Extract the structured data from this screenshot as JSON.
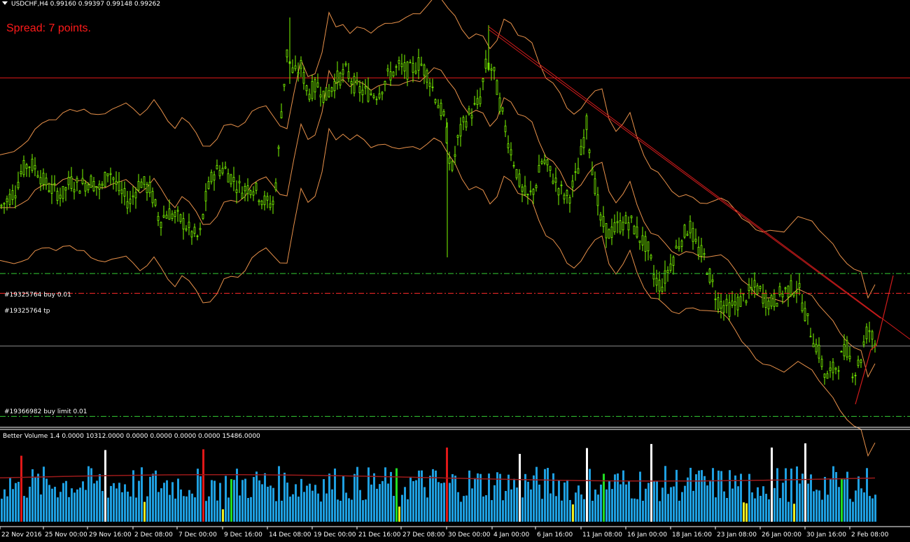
{
  "header": {
    "symbol_line": "USDCHF,H4  0.99160 0.99397 0.99148 0.99262",
    "spread_text": "Spread: 7 points."
  },
  "orders": [
    {
      "label": "#19325764 buy 0.01",
      "style": "dash-dot",
      "color": "#33cc33"
    },
    {
      "label": "#19325764 tp",
      "style": "dash-dot",
      "color": "#ff2a2a"
    },
    {
      "label": "#19366982 buy limit 0.01",
      "style": "dash-dot",
      "color": "#33cc33"
    }
  ],
  "indicator": {
    "title": "Better Volume 1.4 0.0000 10312.0000 0.0000 0.0000 0.0000 0.0000 15486.0000"
  },
  "time_axis": {
    "ticks": [
      "22 Nov 2016",
      "25 Nov 00:00",
      "29 Nov 16:00",
      "2 Dec 08:00",
      "7 Dec 00:00",
      "9 Dec 16:00",
      "14 Dec 08:00",
      "19 Dec 00:00",
      "21 Dec 16:00",
      "27 Dec 08:00",
      "30 Dec 00:00",
      "4 Jan 00:00",
      "6 Jan 16:00",
      "11 Jan 08:00",
      "16 Jan 00:00",
      "18 Jan 16:00",
      "23 Jan 08:00",
      "26 Jan 00:00",
      "30 Jan 16:00",
      "2 Feb 08:00"
    ]
  },
  "colors": {
    "background": "#000000",
    "candle": "#7cfc00",
    "bands": "#e8914a",
    "horizontal_red": "#e01818",
    "trend": "#d01c1c",
    "volume_blue": "#1e9fe0",
    "volume_green": "#22dd22",
    "volume_red": "#e01818",
    "volume_white": "#ffffff",
    "volume_yellow": "#f0f020",
    "volume_ma": "#9b1a1a"
  },
  "chart_data": {
    "type": "candlestick",
    "symbol": "USDCHF",
    "timeframe": "H4",
    "ohlc_last": {
      "open": 0.9916,
      "high": 0.99397,
      "low": 0.99148,
      "close": 0.99262
    },
    "price_path": [
      [
        0,
        0.99
      ],
      [
        12,
        0.992
      ],
      [
        22,
        0.994
      ],
      [
        30,
        0.998
      ],
      [
        40,
        1.0
      ],
      [
        52,
        0.999
      ],
      [
        62,
        0.996
      ],
      [
        75,
        0.994
      ],
      [
        90,
        0.993
      ],
      [
        100,
        0.996
      ],
      [
        112,
        0.995
      ],
      [
        130,
        0.996
      ],
      [
        145,
        0.994
      ],
      [
        155,
        0.999
      ],
      [
        170,
        0.994
      ],
      [
        185,
        0.991
      ],
      [
        200,
        0.996
      ],
      [
        215,
        0.994
      ],
      [
        228,
        0.987
      ],
      [
        240,
        0.989
      ],
      [
        260,
        0.987
      ],
      [
        275,
        0.984
      ],
      [
        285,
        0.983
      ],
      [
        295,
        0.993
      ],
      [
        305,
        0.998
      ],
      [
        320,
        0.999
      ],
      [
        335,
        0.996
      ],
      [
        345,
        0.994
      ],
      [
        360,
        0.995
      ],
      [
        380,
        0.991
      ],
      [
        390,
        0.991
      ],
      [
        396,
        0.998
      ],
      [
        402,
        1.012
      ],
      [
        410,
        1.025
      ],
      [
        420,
        1.02
      ],
      [
        430,
        1.022
      ],
      [
        440,
        1.016
      ],
      [
        455,
        1.018
      ],
      [
        465,
        1.015
      ],
      [
        480,
        1.019
      ],
      [
        495,
        1.021
      ],
      [
        510,
        1.017
      ],
      [
        525,
        1.016
      ],
      [
        540,
        1.016
      ],
      [
        555,
        1.02
      ],
      [
        570,
        1.022
      ],
      [
        585,
        1.021
      ],
      [
        600,
        1.023
      ],
      [
        612,
        1.02
      ],
      [
        625,
        1.014
      ],
      [
        635,
        1.01
      ],
      [
        645,
        0.998
      ],
      [
        655,
        1.006
      ],
      [
        665,
        1.01
      ],
      [
        675,
        1.012
      ],
      [
        685,
        1.014
      ],
      [
        695,
        1.023
      ],
      [
        705,
        1.021
      ],
      [
        715,
        1.013
      ],
      [
        725,
        1.006
      ],
      [
        735,
        1.0
      ],
      [
        745,
        0.994
      ],
      [
        755,
        0.992
      ],
      [
        765,
        0.995
      ],
      [
        775,
        1.001
      ],
      [
        790,
        0.997
      ],
      [
        800,
        0.994
      ],
      [
        812,
        0.992
      ],
      [
        825,
        0.998
      ],
      [
        838,
        1.009
      ],
      [
        848,
        0.997
      ],
      [
        858,
        0.987
      ],
      [
        870,
        0.984
      ],
      [
        885,
        0.986
      ],
      [
        900,
        0.987
      ],
      [
        915,
        0.983
      ],
      [
        925,
        0.981
      ],
      [
        935,
        0.974
      ],
      [
        945,
        0.972
      ],
      [
        955,
        0.976
      ],
      [
        970,
        0.982
      ],
      [
        985,
        0.986
      ],
      [
        995,
        0.981
      ],
      [
        1005,
        0.979
      ],
      [
        1015,
        0.974
      ],
      [
        1025,
        0.969
      ],
      [
        1040,
        0.967
      ],
      [
        1060,
        0.969
      ],
      [
        1080,
        0.972
      ],
      [
        1100,
        0.968
      ],
      [
        1120,
        0.971
      ],
      [
        1140,
        0.972
      ],
      [
        1150,
        0.966
      ],
      [
        1160,
        0.961
      ],
      [
        1170,
        0.957
      ],
      [
        1180,
        0.951
      ],
      [
        1195,
        0.954
      ],
      [
        1210,
        0.958
      ],
      [
        1220,
        0.952
      ],
      [
        1230,
        0.956
      ],
      [
        1240,
        0.963
      ],
      [
        1250,
        0.959
      ]
    ],
    "price_range_visible": [
      0.9405,
      1.035
    ],
    "horizontal_levels": [
      1.0195,
      0.9585
    ],
    "order_levels": [
      0.975,
      0.9705,
      0.9425
    ],
    "volume_ma_level": 0.55
  }
}
